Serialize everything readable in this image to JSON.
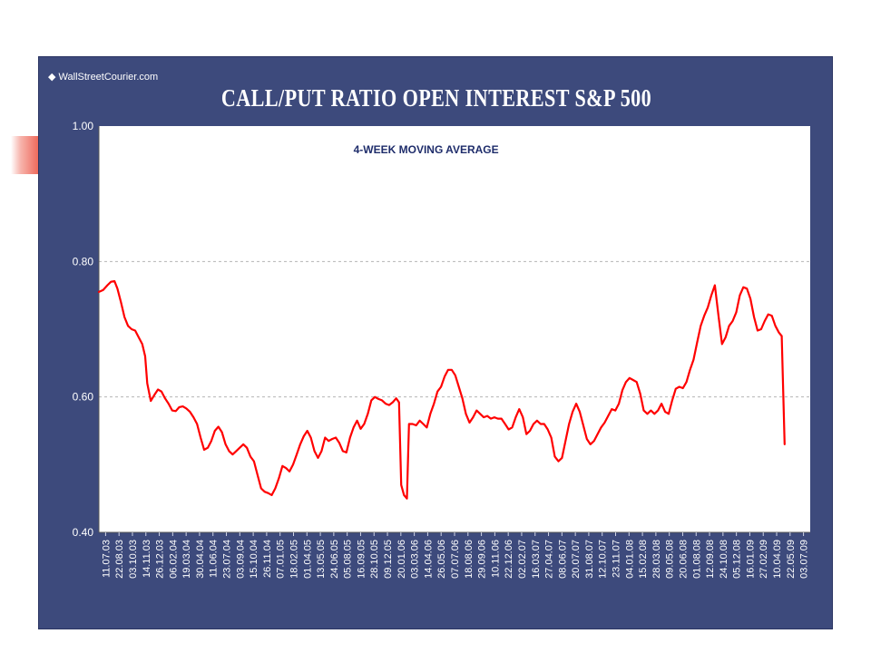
{
  "source_label": "WallStreetCourier.com",
  "source_mark": "◆",
  "chart_data": {
    "type": "line",
    "title": "CALL/PUT RATIO OPEN INTEREST S&P 500",
    "subtitle": "4-WEEK MOVING AVERAGE",
    "xlabel": "",
    "ylabel": "",
    "ylim": [
      0.4,
      1.0
    ],
    "yticks": [
      "0.40",
      "0.60",
      "0.80",
      "1.00"
    ],
    "grid": "horizontal dashed",
    "x_tick_labels": [
      "11.07.03",
      "22.08.03",
      "03.10.03",
      "14.11.03",
      "26.12.03",
      "06.02.04",
      "19.03.04",
      "30.04.04",
      "11.06.04",
      "23.07.04",
      "03.09.04",
      "15.10.04",
      "26.11.04",
      "07.01.05",
      "18.02.05",
      "01.04.05",
      "13.05.05",
      "24.06.05",
      "05.08.05",
      "16.09.05",
      "28.10.05",
      "09.12.05",
      "20.01.06",
      "03.03.06",
      "14.04.06",
      "26.05.06",
      "07.07.06",
      "18.08.06",
      "29.09.06",
      "10.11.06",
      "22.12.06",
      "02.02.07",
      "16.03.07",
      "27.04.07",
      "08.06.07",
      "20.07.07",
      "31.08.07",
      "12.10.07",
      "23.11.07",
      "04.01.08",
      "15.02.08",
      "28.03.08",
      "09.05.08",
      "20.06.08",
      "01.08.08",
      "12.09.08",
      "24.10.08",
      "05.12.08",
      "16.01.09",
      "27.02.09",
      "10.04.09",
      "22.05.09",
      "03.07.09"
    ],
    "series": [
      {
        "color": "#ff0000",
        "values": [
          [
            0.0,
            0.755
          ],
          [
            0.006,
            0.758
          ],
          [
            0.012,
            0.765
          ],
          [
            0.017,
            0.77
          ],
          [
            0.022,
            0.771
          ],
          [
            0.026,
            0.76
          ],
          [
            0.031,
            0.74
          ],
          [
            0.036,
            0.718
          ],
          [
            0.041,
            0.705
          ],
          [
            0.046,
            0.7
          ],
          [
            0.051,
            0.698
          ],
          [
            0.056,
            0.688
          ],
          [
            0.061,
            0.678
          ],
          [
            0.065,
            0.66
          ],
          [
            0.068,
            0.62
          ],
          [
            0.073,
            0.594
          ],
          [
            0.078,
            0.603
          ],
          [
            0.083,
            0.611
          ],
          [
            0.088,
            0.608
          ],
          [
            0.093,
            0.598
          ],
          [
            0.098,
            0.59
          ],
          [
            0.103,
            0.58
          ],
          [
            0.108,
            0.579
          ],
          [
            0.113,
            0.585
          ],
          [
            0.118,
            0.586
          ],
          [
            0.123,
            0.583
          ],
          [
            0.128,
            0.578
          ],
          [
            0.133,
            0.57
          ],
          [
            0.138,
            0.56
          ],
          [
            0.143,
            0.54
          ],
          [
            0.148,
            0.522
          ],
          [
            0.153,
            0.525
          ],
          [
            0.158,
            0.535
          ],
          [
            0.163,
            0.55
          ],
          [
            0.168,
            0.556
          ],
          [
            0.173,
            0.548
          ],
          [
            0.178,
            0.53
          ],
          [
            0.183,
            0.52
          ],
          [
            0.188,
            0.515
          ],
          [
            0.193,
            0.52
          ],
          [
            0.198,
            0.525
          ],
          [
            0.203,
            0.53
          ],
          [
            0.208,
            0.525
          ],
          [
            0.213,
            0.512
          ],
          [
            0.218,
            0.505
          ],
          [
            0.223,
            0.485
          ],
          [
            0.228,
            0.465
          ],
          [
            0.233,
            0.46
          ],
          [
            0.238,
            0.458
          ],
          [
            0.243,
            0.455
          ],
          [
            0.248,
            0.465
          ],
          [
            0.253,
            0.48
          ],
          [
            0.258,
            0.498
          ],
          [
            0.263,
            0.495
          ],
          [
            0.268,
            0.49
          ],
          [
            0.273,
            0.5
          ],
          [
            0.278,
            0.515
          ],
          [
            0.283,
            0.53
          ],
          [
            0.288,
            0.542
          ],
          [
            0.293,
            0.55
          ],
          [
            0.298,
            0.54
          ],
          [
            0.303,
            0.52
          ],
          [
            0.308,
            0.51
          ],
          [
            0.313,
            0.52
          ],
          [
            0.318,
            0.54
          ],
          [
            0.323,
            0.535
          ],
          [
            0.328,
            0.538
          ],
          [
            0.333,
            0.54
          ],
          [
            0.338,
            0.532
          ],
          [
            0.343,
            0.52
          ],
          [
            0.348,
            0.518
          ],
          [
            0.353,
            0.54
          ],
          [
            0.358,
            0.555
          ],
          [
            0.363,
            0.565
          ],
          [
            0.368,
            0.553
          ],
          [
            0.373,
            0.56
          ],
          [
            0.378,
            0.575
          ],
          [
            0.383,
            0.595
          ],
          [
            0.388,
            0.6
          ],
          [
            0.393,
            0.597
          ],
          [
            0.398,
            0.595
          ],
          [
            0.403,
            0.59
          ],
          [
            0.408,
            0.588
          ],
          [
            0.413,
            0.592
          ],
          [
            0.418,
            0.598
          ],
          [
            0.422,
            0.592
          ],
          [
            0.425,
            0.47
          ],
          [
            0.429,
            0.455
          ],
          [
            0.433,
            0.45
          ],
          [
            0.436,
            0.56
          ],
          [
            0.441,
            0.56
          ],
          [
            0.446,
            0.558
          ],
          [
            0.451,
            0.565
          ],
          [
            0.456,
            0.56
          ],
          [
            0.461,
            0.555
          ],
          [
            0.466,
            0.575
          ],
          [
            0.471,
            0.59
          ],
          [
            0.476,
            0.608
          ],
          [
            0.481,
            0.615
          ],
          [
            0.486,
            0.63
          ],
          [
            0.491,
            0.64
          ],
          [
            0.496,
            0.64
          ],
          [
            0.501,
            0.632
          ],
          [
            0.506,
            0.615
          ],
          [
            0.511,
            0.598
          ],
          [
            0.516,
            0.575
          ],
          [
            0.521,
            0.562
          ],
          [
            0.526,
            0.57
          ],
          [
            0.531,
            0.58
          ],
          [
            0.536,
            0.575
          ],
          [
            0.541,
            0.57
          ],
          [
            0.546,
            0.572
          ],
          [
            0.551,
            0.568
          ],
          [
            0.556,
            0.57
          ],
          [
            0.561,
            0.568
          ],
          [
            0.566,
            0.568
          ],
          [
            0.571,
            0.56
          ],
          [
            0.576,
            0.552
          ],
          [
            0.581,
            0.555
          ],
          [
            0.586,
            0.57
          ],
          [
            0.591,
            0.582
          ],
          [
            0.596,
            0.57
          ],
          [
            0.601,
            0.545
          ],
          [
            0.606,
            0.55
          ],
          [
            0.611,
            0.56
          ],
          [
            0.616,
            0.565
          ],
          [
            0.621,
            0.56
          ],
          [
            0.626,
            0.56
          ],
          [
            0.631,
            0.552
          ],
          [
            0.636,
            0.54
          ],
          [
            0.641,
            0.512
          ],
          [
            0.646,
            0.505
          ],
          [
            0.651,
            0.51
          ],
          [
            0.656,
            0.535
          ],
          [
            0.661,
            0.56
          ],
          [
            0.666,
            0.578
          ],
          [
            0.671,
            0.59
          ],
          [
            0.676,
            0.578
          ],
          [
            0.681,
            0.558
          ],
          [
            0.686,
            0.538
          ],
          [
            0.691,
            0.53
          ],
          [
            0.696,
            0.535
          ],
          [
            0.701,
            0.545
          ],
          [
            0.706,
            0.555
          ],
          [
            0.711,
            0.562
          ],
          [
            0.716,
            0.572
          ],
          [
            0.721,
            0.582
          ],
          [
            0.726,
            0.58
          ],
          [
            0.731,
            0.59
          ],
          [
            0.736,
            0.61
          ],
          [
            0.741,
            0.622
          ],
          [
            0.746,
            0.628
          ],
          [
            0.751,
            0.625
          ],
          [
            0.756,
            0.622
          ],
          [
            0.761,
            0.605
          ],
          [
            0.766,
            0.58
          ],
          [
            0.771,
            0.575
          ],
          [
            0.776,
            0.58
          ],
          [
            0.781,
            0.575
          ],
          [
            0.786,
            0.58
          ],
          [
            0.791,
            0.59
          ],
          [
            0.796,
            0.578
          ],
          [
            0.801,
            0.575
          ],
          [
            0.806,
            0.595
          ],
          [
            0.811,
            0.612
          ],
          [
            0.816,
            0.615
          ],
          [
            0.821,
            0.613
          ],
          [
            0.826,
            0.622
          ],
          [
            0.831,
            0.64
          ],
          [
            0.836,
            0.655
          ],
          [
            0.841,
            0.68
          ],
          [
            0.846,
            0.705
          ],
          [
            0.851,
            0.72
          ],
          [
            0.856,
            0.732
          ],
          [
            0.861,
            0.75
          ],
          [
            0.866,
            0.765
          ],
          [
            0.871,
            0.72
          ],
          [
            0.876,
            0.678
          ],
          [
            0.881,
            0.688
          ],
          [
            0.886,
            0.705
          ],
          [
            0.891,
            0.712
          ],
          [
            0.896,
            0.725
          ],
          [
            0.901,
            0.75
          ],
          [
            0.906,
            0.762
          ],
          [
            0.911,
            0.76
          ],
          [
            0.916,
            0.745
          ],
          [
            0.921,
            0.718
          ],
          [
            0.926,
            0.698
          ],
          [
            0.931,
            0.7
          ],
          [
            0.936,
            0.712
          ],
          [
            0.941,
            0.722
          ],
          [
            0.946,
            0.72
          ],
          [
            0.951,
            0.705
          ],
          [
            0.956,
            0.695
          ],
          [
            0.96,
            0.69
          ],
          [
            0.962,
            0.61
          ],
          [
            0.964,
            0.53
          ]
        ]
      }
    ]
  }
}
